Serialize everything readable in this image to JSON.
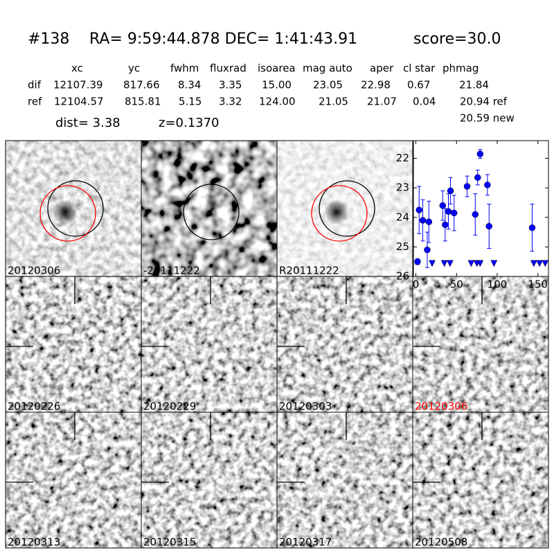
{
  "header": {
    "id": "#138",
    "coords": "RA= 9:59:44.878 DEC= 1:41:43.91",
    "score": "score=30.0"
  },
  "table": {
    "columns": [
      "xc",
      "yc",
      "fwhm",
      "fluxrad",
      "isoarea",
      "mag auto",
      "aper",
      "cl star",
      "phmag"
    ],
    "rows": [
      {
        "label": "dif",
        "cells": [
          "12107.39",
          "817.66",
          "8.34",
          "3.35",
          "15.00",
          "23.05",
          "22.98",
          "0.67",
          "21.84"
        ]
      },
      {
        "label": "ref",
        "cells": [
          "12104.57",
          "815.81",
          "5.15",
          "3.32",
          "124.00",
          "21.05",
          "21.07",
          "0.04",
          "20.94 ref"
        ]
      }
    ],
    "extra": "20.59 new"
  },
  "dist": "dist=  3.38",
  "redshift": "z=0.1370",
  "stamps": [
    {
      "label": "20120306",
      "color": "#000000"
    },
    {
      "label": "-20111222",
      "color": "#000000"
    },
    {
      "label": "R20111222",
      "color": "#000000"
    },
    {
      "label": "20120226",
      "color": "#000000"
    },
    {
      "label": "20120229",
      "color": "#000000"
    },
    {
      "label": "20120303",
      "color": "#000000"
    },
    {
      "label": "20120306",
      "color": "#ff0000"
    },
    {
      "label": "20120313",
      "color": "#000000"
    },
    {
      "label": "20120315",
      "color": "#000000"
    },
    {
      "label": "20120317",
      "color": "#000000"
    },
    {
      "label": "20120508",
      "color": "#000000"
    }
  ],
  "chart_data": {
    "type": "scatter",
    "color": "#0000ff",
    "xlim": [
      -3,
      163
    ],
    "ylim": [
      26,
      21.4
    ],
    "xticks": [
      0,
      50,
      100,
      150
    ],
    "yticks": [
      22,
      23,
      24,
      25,
      26
    ],
    "series": [
      {
        "marker": "circle",
        "x": [
          2,
          4,
          8.5,
          14,
          16,
          33,
          36,
          40,
          42.6,
          47,
          63,
          73,
          76,
          79,
          88,
          90,
          143
        ],
        "values": [
          25.5,
          23.75,
          24.1,
          25.1,
          24.15,
          23.6,
          24.25,
          23.8,
          23.1,
          23.85,
          22.95,
          23.9,
          22.65,
          21.85,
          22.9,
          24.3,
          24.35
        ],
        "errors": [
          0.1,
          0.8,
          0.7,
          0.6,
          0.7,
          0.5,
          0.55,
          0.6,
          0.45,
          0.6,
          0.35,
          0.7,
          0.25,
          0.15,
          0.35,
          0.75,
          0.8
        ]
      },
      {
        "marker": "triangle",
        "x": [
          20,
          35,
          42,
          68,
          75,
          79,
          96,
          145,
          152,
          159
        ],
        "values": [
          25.55,
          25.55,
          25.55,
          25.55,
          25.55,
          25.55,
          25.55,
          25.55,
          25.55,
          25.55
        ]
      }
    ]
  }
}
